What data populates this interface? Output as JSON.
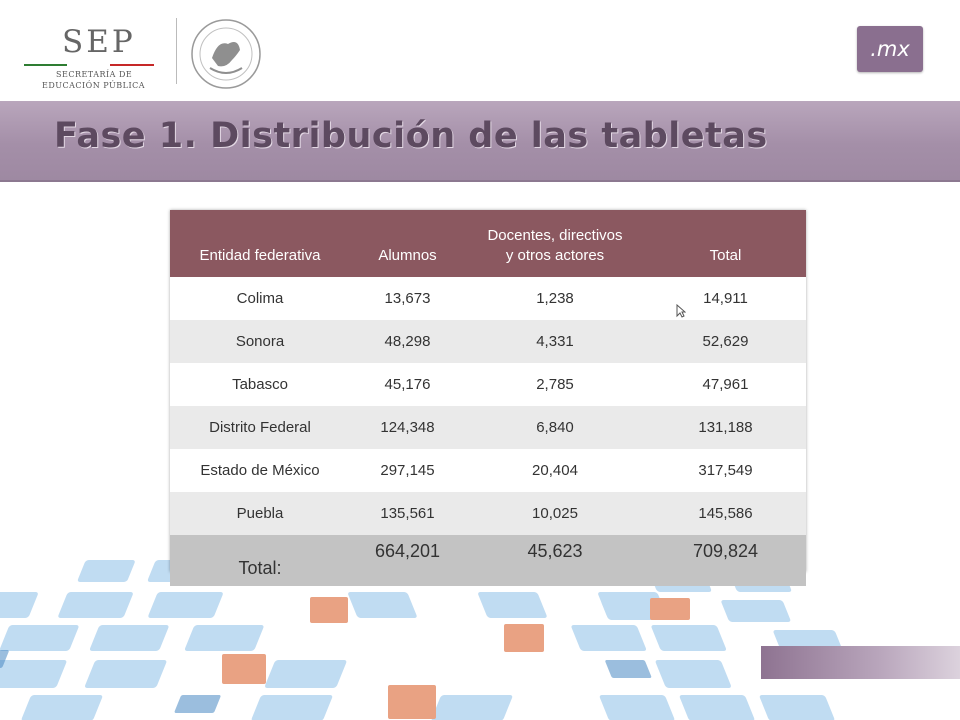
{
  "header": {
    "sep_word": "SEP",
    "sep_line1": "SECRETARÍA DE",
    "sep_line2": "EDUCACIÓN PÚBLICA",
    "mx_badge": ".mx"
  },
  "slide_title": "Fase 1. Distribución de las tabletas",
  "table": {
    "headers": [
      "Entidad federativa",
      "Alumnos",
      "Docentes, directivos\ny otros actores",
      "Total"
    ],
    "rows": [
      [
        "Colima",
        "13,673",
        "1,238",
        "14,911"
      ],
      [
        "Sonora",
        "48,298",
        "4,331",
        "52,629"
      ],
      [
        "Tabasco",
        "45,176",
        "2,785",
        "47,961"
      ],
      [
        "Distrito Federal",
        "124,348",
        "6,840",
        "131,188"
      ],
      [
        "Estado de México",
        "297,145",
        "20,404",
        "317,549"
      ],
      [
        "Puebla",
        "135,561",
        "10,025",
        "145,586"
      ]
    ],
    "total": [
      "Total:",
      "664,201",
      "45,623",
      "709,824"
    ]
  },
  "colors": {
    "band": "#a48fa8",
    "header_row": "#8b5860",
    "total_row": "#c3c3c3",
    "tile_blue": "#b3d4ef",
    "tile_orange": "#e07a55"
  }
}
